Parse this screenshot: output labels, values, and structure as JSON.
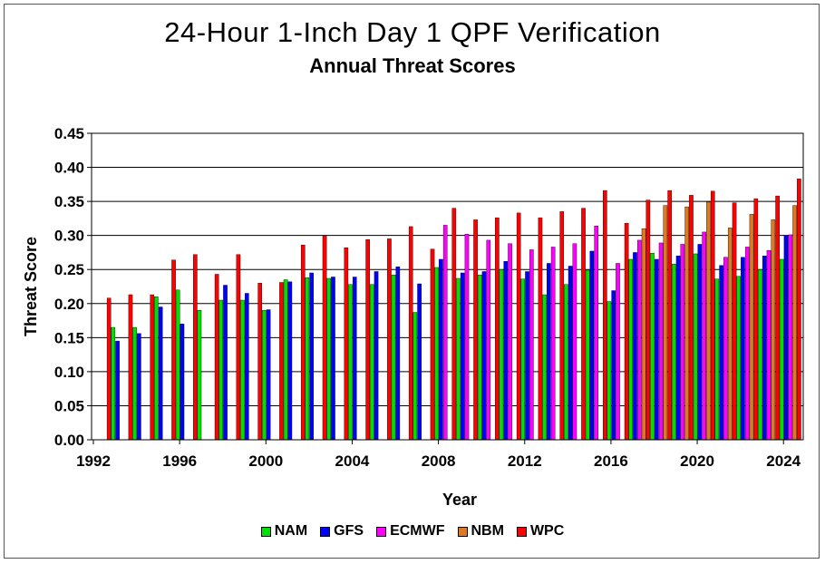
{
  "chart_data": {
    "type": "bar",
    "title": "24-Hour 1-Inch Day 1 QPF Verification",
    "subtitle": "Annual Threat Scores",
    "xlabel": "Year",
    "ylabel": "Threat Score",
    "ylim": [
      0,
      0.45
    ],
    "y_ticks": [
      "0.00",
      "0.05",
      "0.10",
      "0.15",
      "0.20",
      "0.25",
      "0.30",
      "0.35",
      "0.40",
      "0.45"
    ],
    "x_tick_labels": [
      "1992",
      "1996",
      "2000",
      "2004",
      "2008",
      "2012",
      "2016",
      "2020",
      "2024"
    ],
    "grid": "horizontal",
    "legend_position": "bottom",
    "categories": [
      1992,
      1993,
      1994,
      1995,
      1996,
      1997,
      1998,
      1999,
      2000,
      2001,
      2002,
      2003,
      2004,
      2005,
      2006,
      2007,
      2008,
      2009,
      2010,
      2011,
      2012,
      2013,
      2014,
      2015,
      2016,
      2017,
      2018,
      2019,
      2020,
      2021,
      2022,
      2023,
      2024
    ],
    "series": [
      {
        "name": "NAM",
        "color": "#00e000",
        "values": [
          null,
          0.165,
          0.165,
          0.21,
          0.22,
          0.19,
          0.205,
          0.205,
          0.19,
          0.235,
          0.238,
          0.237,
          0.228,
          0.228,
          0.242,
          0.187,
          0.253,
          0.237,
          0.242,
          0.25,
          0.236,
          0.213,
          0.228,
          0.249,
          0.203,
          0.265,
          0.274,
          0.258,
          0.273,
          0.236,
          0.24,
          0.25,
          0.265
        ]
      },
      {
        "name": "GFS",
        "color": "#0000ff",
        "values": [
          null,
          0.145,
          0.156,
          0.195,
          0.17,
          null,
          0.227,
          0.215,
          0.191,
          0.232,
          0.245,
          0.239,
          0.239,
          0.247,
          0.254,
          0.229,
          0.265,
          0.245,
          0.247,
          0.262,
          0.247,
          0.259,
          0.255,
          0.277,
          0.219,
          0.275,
          0.265,
          0.27,
          0.287,
          0.256,
          0.268,
          0.27,
          0.3
        ]
      },
      {
        "name": "ECMWF",
        "color": "#ff00ff",
        "values": [
          null,
          null,
          null,
          null,
          null,
          null,
          null,
          null,
          null,
          null,
          null,
          null,
          null,
          null,
          null,
          null,
          0.315,
          0.302,
          0.293,
          0.288,
          0.279,
          0.283,
          0.288,
          0.314,
          0.259,
          0.293,
          0.289,
          0.287,
          0.305,
          0.268,
          0.283,
          0.278,
          0.301
        ]
      },
      {
        "name": "NBM",
        "color": "#e07820",
        "values": [
          null,
          null,
          null,
          null,
          null,
          null,
          null,
          null,
          null,
          null,
          null,
          null,
          null,
          null,
          null,
          null,
          null,
          null,
          null,
          null,
          null,
          null,
          null,
          null,
          null,
          0.31,
          0.344,
          0.342,
          0.349,
          0.311,
          0.331,
          0.323,
          0.344
        ]
      },
      {
        "name": "WPC",
        "color": "#ff0000",
        "values": [
          0.208,
          0.213,
          0.213,
          0.264,
          0.272,
          0.243,
          0.272,
          0.23,
          0.231,
          0.286,
          0.299,
          0.282,
          0.294,
          0.295,
          0.313,
          0.28,
          0.34,
          0.323,
          0.326,
          0.333,
          0.326,
          0.335,
          0.34,
          0.366,
          0.318,
          0.352,
          0.366,
          0.359,
          0.365,
          0.348,
          0.354,
          0.358,
          0.383
        ]
      }
    ]
  }
}
